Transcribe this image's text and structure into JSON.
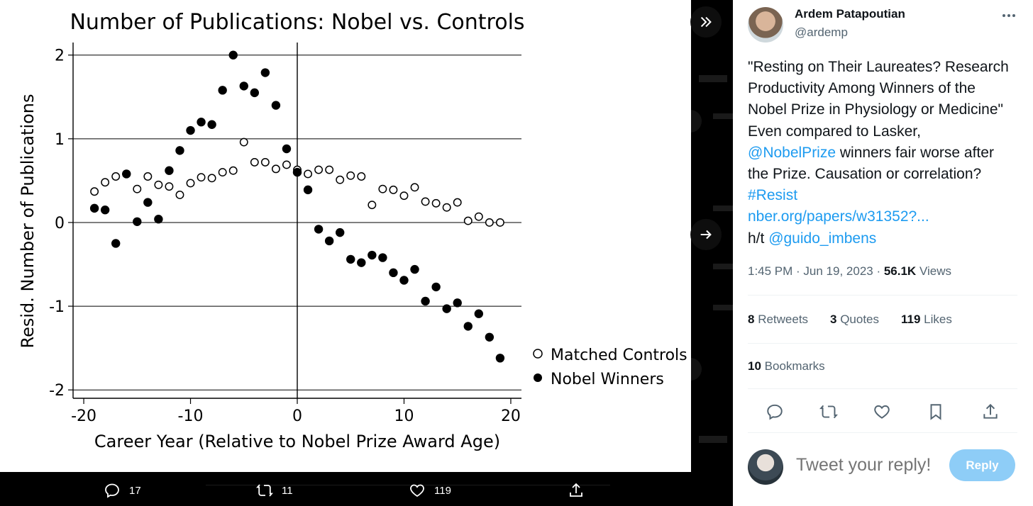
{
  "chart_data": {
    "type": "scatter",
    "title": "Number of Publications: Nobel vs. Controls",
    "xlabel": "Career Year (Relative to Nobel Prize Award Age)",
    "ylabel": "Resid. Number of Publications",
    "xlim": [
      -21,
      21
    ],
    "ylim": [
      -2.1,
      2.15
    ],
    "xticks": [
      "-20",
      "-10",
      "0",
      "10",
      "20"
    ],
    "xtick_values": [
      -20,
      -10,
      0,
      10,
      20
    ],
    "yticks": [
      "2",
      "1",
      "0",
      "-1",
      "-2"
    ],
    "ytick_values": [
      2,
      1,
      0,
      -1,
      -2
    ],
    "grid": "horizontal",
    "legend_position": "right",
    "series": [
      {
        "name": "Matched Controls",
        "marker": "hollow-circle",
        "x": [
          -19,
          -18,
          -17,
          -16,
          -15,
          -14,
          -13,
          -12,
          -11,
          -10,
          -9,
          -8,
          -7,
          -6,
          -5,
          -4,
          -3,
          -2,
          -1,
          0,
          1,
          2,
          3,
          4,
          5,
          6,
          7,
          8,
          9,
          10,
          11,
          12,
          13,
          14,
          15,
          16,
          17,
          18,
          19
        ],
        "y": [
          0.37,
          0.48,
          0.55,
          0.58,
          0.4,
          0.55,
          0.45,
          0.43,
          0.33,
          0.47,
          0.54,
          0.53,
          0.6,
          0.62,
          0.96,
          0.72,
          0.72,
          0.64,
          0.69,
          0.63,
          0.58,
          0.63,
          0.63,
          0.51,
          0.56,
          0.55,
          0.21,
          0.4,
          0.39,
          0.32,
          0.42,
          0.25,
          0.23,
          0.18,
          0.24,
          0.02,
          0.07,
          0.0,
          0.0
        ]
      },
      {
        "name": "Nobel Winners",
        "marker": "filled-circle",
        "x": [
          -19,
          -18,
          -17,
          -16,
          -15,
          -14,
          -13,
          -12,
          -11,
          -10,
          -9,
          -8,
          -7,
          -6,
          -5,
          -4,
          -3,
          -2,
          -1,
          0,
          1,
          2,
          3,
          4,
          5,
          6,
          7,
          8,
          9,
          10,
          11,
          12,
          13,
          14,
          15,
          16,
          17,
          18,
          19
        ],
        "y": [
          0.17,
          0.15,
          -0.25,
          0.58,
          0.01,
          0.24,
          0.04,
          0.62,
          0.86,
          1.1,
          1.2,
          1.17,
          1.58,
          2.0,
          1.63,
          1.55,
          1.79,
          1.4,
          0.88,
          0.6,
          0.39,
          -0.08,
          -0.22,
          -0.12,
          -0.44,
          -0.48,
          -0.39,
          -0.42,
          -0.6,
          -0.69,
          -0.56,
          -0.94,
          -0.77,
          -1.03,
          -0.96,
          -1.24,
          -1.09,
          -1.37,
          -1.62
        ]
      }
    ]
  },
  "action_bar": {
    "reply_count": "17",
    "retweet_count": "11",
    "like_count": "119"
  },
  "tweet": {
    "author_name": "Ardem Patapoutian",
    "author_handle": "@ardemp",
    "text_lines": [
      "\"Resting on Their Laureates? Research",
      "Productivity Among Winners of the",
      "Nobel Prize in Physiology or Medicine\"",
      "Even compared to Lasker,"
    ],
    "mention_nobel": "@NobelPrize",
    "text_after_mention": " winners fair worse after",
    "text_line_6": "the Prize. Causation or correlation?",
    "hashtag": "#Resist",
    "link": "nber.org/papers/w31352?...",
    "ht_prefix": "h/t ",
    "mention_guido": "@guido_imbens",
    "time": "1:45 PM",
    "dot": " · ",
    "date": "Jun 19, 2023",
    "views_count": "56.1K",
    "views_label": " Views",
    "retweets_count": "8",
    "retweets_label": " Retweets",
    "quotes_count": "3",
    "quotes_label": " Quotes",
    "likes_count": "119",
    "likes_label": " Likes",
    "bookmarks_count": "10",
    "bookmarks_label": " Bookmarks"
  },
  "reply": {
    "placeholder": "Tweet your reply!",
    "button_label": "Reply"
  },
  "colors": {
    "accent": "#1d9bf0",
    "reply_button": "#8ecdf7",
    "text_primary": "#0f1419",
    "text_secondary": "#536471"
  }
}
